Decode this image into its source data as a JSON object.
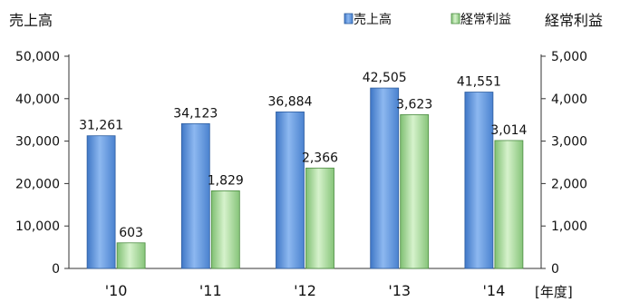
{
  "chart_data": {
    "type": "bar",
    "categories": [
      "'10",
      "'11",
      "'12",
      "'13",
      "'14"
    ],
    "xlabel": "[年度]",
    "y_left": {
      "label": "売上高",
      "ylim": [
        0,
        50000
      ],
      "ticks": [
        "0",
        "10,000",
        "20,000",
        "30,000",
        "40,000",
        "50,000"
      ]
    },
    "y_right": {
      "label": "経常利益",
      "ylim": [
        0,
        5000
      ],
      "ticks": [
        "0",
        "1,000",
        "2,000",
        "3,000",
        "4,000",
        "5,000"
      ]
    },
    "series": [
      {
        "name": "売上高",
        "axis": "left",
        "color": "#6FA3E8",
        "values": [
          31261,
          34123,
          36884,
          42505,
          41551
        ],
        "labels": [
          "31,261",
          "34,123",
          "36,884",
          "42,505",
          "41,551"
        ]
      },
      {
        "name": "経常利益",
        "axis": "right",
        "color": "#B5E3A7",
        "values": [
          603,
          1829,
          2366,
          3623,
          3014
        ],
        "labels": [
          "603",
          "1,829",
          "2,366",
          "3,623",
          "3,014"
        ]
      }
    ],
    "legend": "top-right",
    "grid": false
  }
}
